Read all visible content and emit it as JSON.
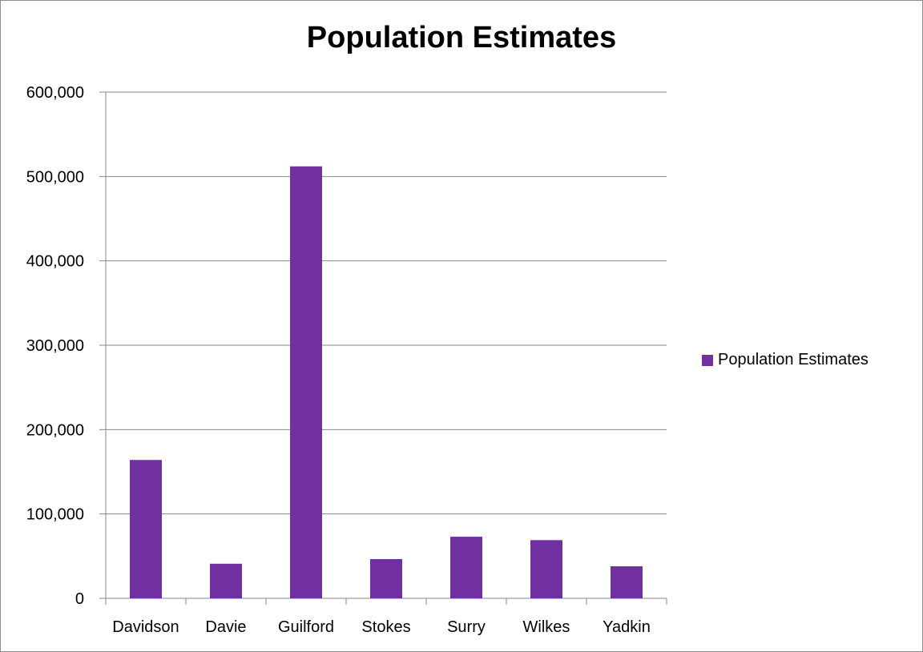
{
  "chart_data": {
    "type": "bar",
    "title": "Population Estimates",
    "xlabel": "",
    "ylabel": "",
    "categories": [
      "Davidson",
      "Davie",
      "Guilford",
      "Stokes",
      "Surry",
      "Wilkes",
      "Yadkin"
    ],
    "series": [
      {
        "name": "Population Estimates",
        "values": [
          164000,
          41000,
          512000,
          46500,
          73000,
          69000,
          38000
        ]
      }
    ],
    "ylim": [
      0,
      600000
    ],
    "yticks": [
      "0",
      "100,000",
      "200,000",
      "300,000",
      "400,000",
      "500,000",
      "600,000"
    ],
    "grid": true,
    "legend_position": "right",
    "colors": {
      "bar": "#7030a0",
      "grid": "#878787",
      "axis": "#878787"
    }
  }
}
